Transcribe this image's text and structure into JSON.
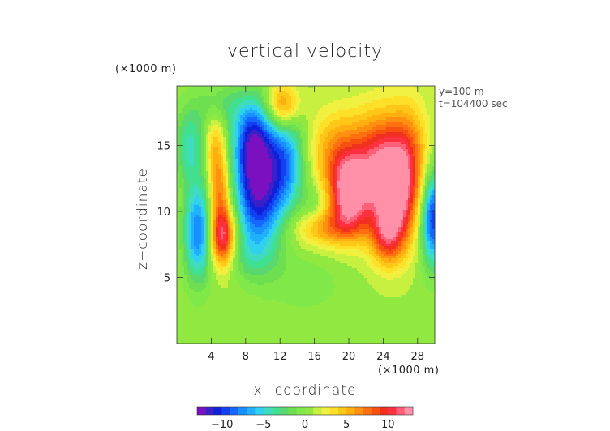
{
  "chart_data": {
    "type": "heatmap",
    "title": "vertical velocity",
    "xlabel": "x−coordinate",
    "ylabel": "z−coordinate",
    "x_unit": "(×1000 m)",
    "y_unit": "(×1000 m)",
    "annotations": [
      "y=100 m",
      "t=104400 sec"
    ],
    "xlim": [
      0,
      30
    ],
    "ylim": [
      0,
      19.5
    ],
    "x_ticks": [
      4,
      8,
      12,
      16,
      20,
      24,
      28
    ],
    "y_ticks": [
      5,
      10,
      15
    ],
    "x_tick_labels": [
      "4",
      "8",
      "12",
      "16",
      "20",
      "24",
      "28"
    ],
    "y_tick_labels": [
      "5",
      "10",
      "15"
    ],
    "colorbar": {
      "min": -13,
      "max": 13,
      "step": 1,
      "ticks": [
        -10,
        -5,
        0,
        5,
        10
      ],
      "tick_labels": [
        "−10",
        "−5",
        "0",
        "5",
        "10"
      ],
      "colors": [
        "#7a10c0",
        "#3a20c8",
        "#1020d8",
        "#1040f0",
        "#1468ff",
        "#1890ff",
        "#20b0ff",
        "#30d0f0",
        "#40dcc0",
        "#40e090",
        "#5ad870",
        "#6ee050",
        "#80e848",
        "#90e840",
        "#c8f040",
        "#f0f040",
        "#ffe028",
        "#ffc818",
        "#ffb010",
        "#ff9010",
        "#ff7010",
        "#f85010",
        "#f03020",
        "#ff3040",
        "#ff6078",
        "#ff90a8"
      ]
    },
    "grid": false,
    "features": [
      {
        "x": 2.5,
        "z": 8.5,
        "amp": -9,
        "sx": 1.2,
        "sz": 2.6
      },
      {
        "x": 1.5,
        "z": 15.0,
        "amp": -5,
        "sx": 1.2,
        "sz": 2.0
      },
      {
        "x": 9.5,
        "z": 11.5,
        "amp": -12,
        "sx": 2.0,
        "sz": 3.2
      },
      {
        "x": 8.8,
        "z": 15.5,
        "amp": -8,
        "sx": 1.6,
        "sz": 2.2
      },
      {
        "x": 12.8,
        "z": 13.8,
        "amp": -7,
        "sx": 1.5,
        "sz": 2.6
      },
      {
        "x": 5.0,
        "z": 18.0,
        "amp": -3,
        "sx": 2.0,
        "sz": 1.2
      },
      {
        "x": 29.8,
        "z": 9.5,
        "amp": -11,
        "sx": 1.0,
        "sz": 2.5
      },
      {
        "x": 5.3,
        "z": 8.0,
        "amp": 11,
        "sx": 1.1,
        "sz": 1.6
      },
      {
        "x": 5.0,
        "z": 11.5,
        "amp": 6,
        "sx": 0.9,
        "sz": 2.0
      },
      {
        "x": 4.5,
        "z": 15.0,
        "amp": 4,
        "sx": 0.8,
        "sz": 2.0
      },
      {
        "x": 12.3,
        "z": 18.0,
        "amp": 7,
        "sx": 1.3,
        "sz": 1.2
      },
      {
        "x": 20.0,
        "z": 11.3,
        "amp": 11,
        "sx": 1.6,
        "sz": 2.0
      },
      {
        "x": 23.5,
        "z": 13.5,
        "amp": 9,
        "sx": 2.2,
        "sz": 2.8
      },
      {
        "x": 25.5,
        "z": 11.0,
        "amp": 9,
        "sx": 1.8,
        "sz": 2.6
      },
      {
        "x": 27.0,
        "z": 14.5,
        "amp": 5,
        "sx": 1.6,
        "sz": 2.8
      },
      {
        "x": 18.5,
        "z": 14.5,
        "amp": 5,
        "sx": 2.2,
        "sz": 2.2
      },
      {
        "x": 17.5,
        "z": 8.8,
        "amp": 5,
        "sx": 2.8,
        "sz": 1.0
      },
      {
        "x": 24.5,
        "z": 8.0,
        "amp": 6,
        "sx": 1.4,
        "sz": 1.5
      },
      {
        "x": 16.0,
        "z": 10.5,
        "amp": -2,
        "sx": 1.2,
        "sz": 1.2
      },
      {
        "x": 15.0,
        "z": 4.5,
        "amp": -1.5,
        "sx": 3.0,
        "sz": 1.5
      },
      {
        "x": 8.0,
        "z": 6.5,
        "amp": -2,
        "sx": 2.5,
        "sz": 1.2
      }
    ]
  }
}
